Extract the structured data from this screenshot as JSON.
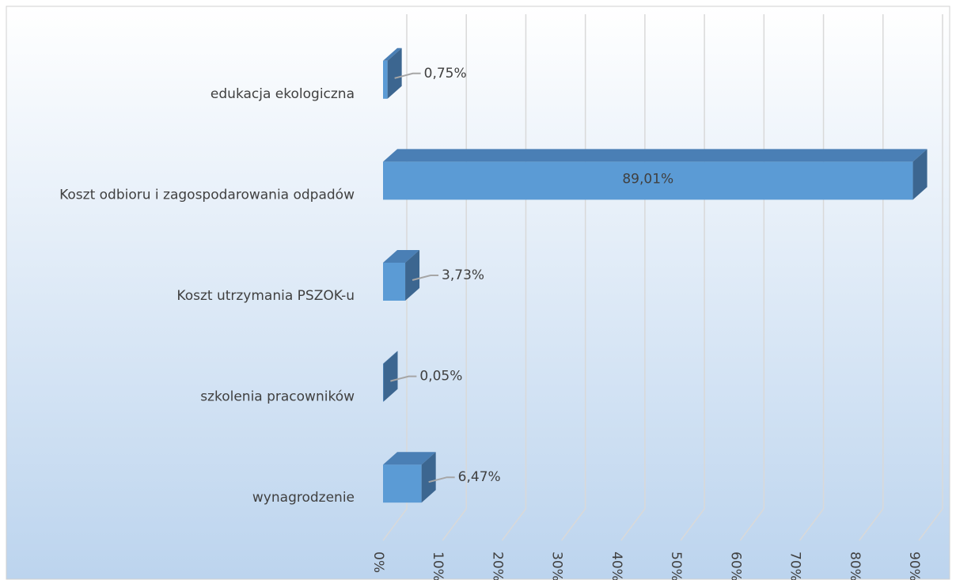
{
  "chart_data": {
    "type": "bar3d_horizontal",
    "categories": [
      "edukacja ekologiczna",
      "Koszt odbioru i zagospodarowania odpadów",
      "Koszt utrzymania PSZOK-u",
      "szkolenia pracowników",
      "wynagrodzenie"
    ],
    "values": [
      0.75,
      89.01,
      3.73,
      0.05,
      6.47
    ],
    "value_labels": [
      "0,75%",
      "89,01%",
      "3,73%",
      "0,05%",
      "6,47%"
    ],
    "color": "#5b9bd5",
    "xlim": [
      0,
      90
    ],
    "xticks": [
      {
        "value": 0,
        "label": "0%"
      },
      {
        "value": 10,
        "label": "10%"
      },
      {
        "value": 20,
        "label": "20%"
      },
      {
        "value": 30,
        "label": "30%"
      },
      {
        "value": 40,
        "label": "40%"
      },
      {
        "value": 50,
        "label": "50%"
      },
      {
        "value": 60,
        "label": "60%"
      },
      {
        "value": 70,
        "label": "70%"
      },
      {
        "value": 80,
        "label": "80%"
      },
      {
        "value": 90,
        "label": "90%"
      }
    ],
    "grid": true
  }
}
